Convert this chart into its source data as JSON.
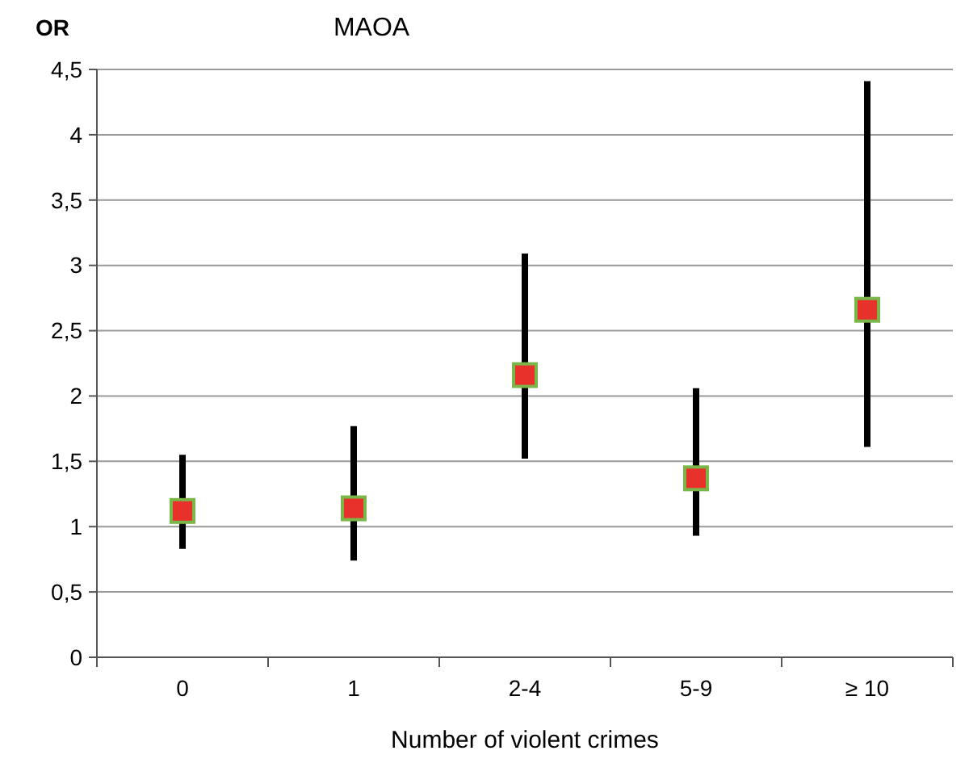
{
  "chart_data": {
    "type": "scatter",
    "title": "MAOA",
    "ylabel": "OR",
    "xlabel": "Number of violent crimes",
    "categories": [
      "0",
      "1",
      "2-4",
      "5-9",
      "≥ 10"
    ],
    "series": [
      {
        "color": "#e8312a",
        "values": [
          1.12,
          1.14,
          2.16,
          1.37,
          2.66
        ],
        "errors": [
          [
            0.83,
            1.55
          ],
          [
            0.74,
            1.77
          ],
          [
            1.52,
            3.09
          ],
          [
            0.93,
            2.06
          ],
          [
            1.61,
            4.41
          ]
        ]
      }
    ],
    "ylim": [
      0,
      4.5
    ],
    "yticks": [
      0,
      {
        "value": 0.5,
        "label": "0,5"
      },
      1,
      {
        "value": 1.5,
        "label": "1,5"
      },
      2,
      {
        "value": 2.5,
        "label": "2,5"
      },
      3,
      {
        "value": 3.5,
        "label": "3,5"
      },
      4,
      {
        "value": 4.5,
        "label": "4,5"
      }
    ],
    "grid": "y",
    "marker": "square"
  }
}
